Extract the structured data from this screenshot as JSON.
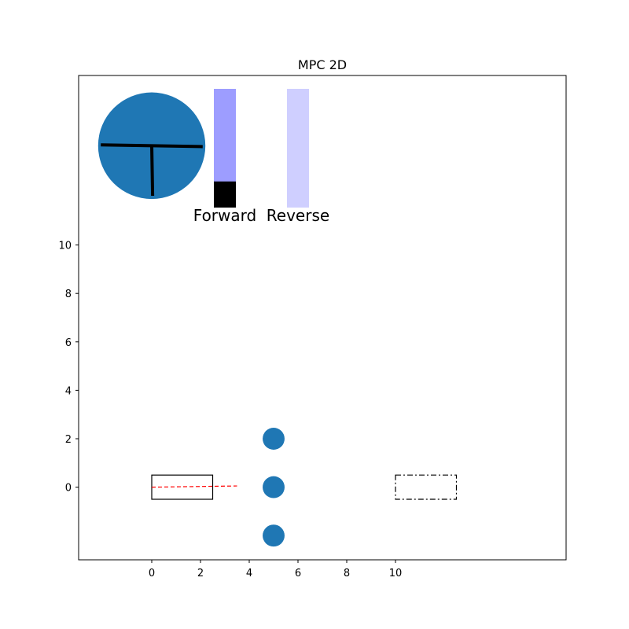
{
  "chart_data": {
    "type": "scatter",
    "title": "MPC 2D",
    "xlabel": "",
    "ylabel": "",
    "xlim": [
      -3,
      17
    ],
    "ylim": [
      -3,
      17
    ],
    "xticks": [
      0,
      2,
      4,
      6,
      8,
      10
    ],
    "yticks": [
      0,
      2,
      4,
      6,
      8,
      10
    ],
    "grid": false,
    "obstacles": [
      {
        "x": 5,
        "y": 2,
        "r": 0.45
      },
      {
        "x": 5,
        "y": 0,
        "r": 0.45
      },
      {
        "x": 5,
        "y": -2,
        "r": 0.45
      }
    ],
    "car": {
      "x": 0,
      "y": 0,
      "length": 2.5,
      "width": 1.0,
      "heading_deg": 0
    },
    "target": {
      "x": 10,
      "y": 0,
      "length": 2.5,
      "width": 1.0
    },
    "predicted_path": {
      "x": [
        0,
        3.5
      ],
      "y": [
        0,
        0.05
      ],
      "color": "#ff0000"
    },
    "steering_wheel": {
      "cx": 0,
      "cy": 14.1,
      "r": 2.2,
      "angle_deg": -1,
      "color": "#1f77b4"
    },
    "gauges": [
      {
        "label": "Forward",
        "level": 0.22,
        "color": "#9d9dff"
      },
      {
        "label": "Reverse",
        "level": 0.0,
        "color": "#cfcfff"
      }
    ],
    "colors": {
      "obstacle": "#1f77b4",
      "car_edge": "#000000",
      "axes": "#000000"
    }
  }
}
